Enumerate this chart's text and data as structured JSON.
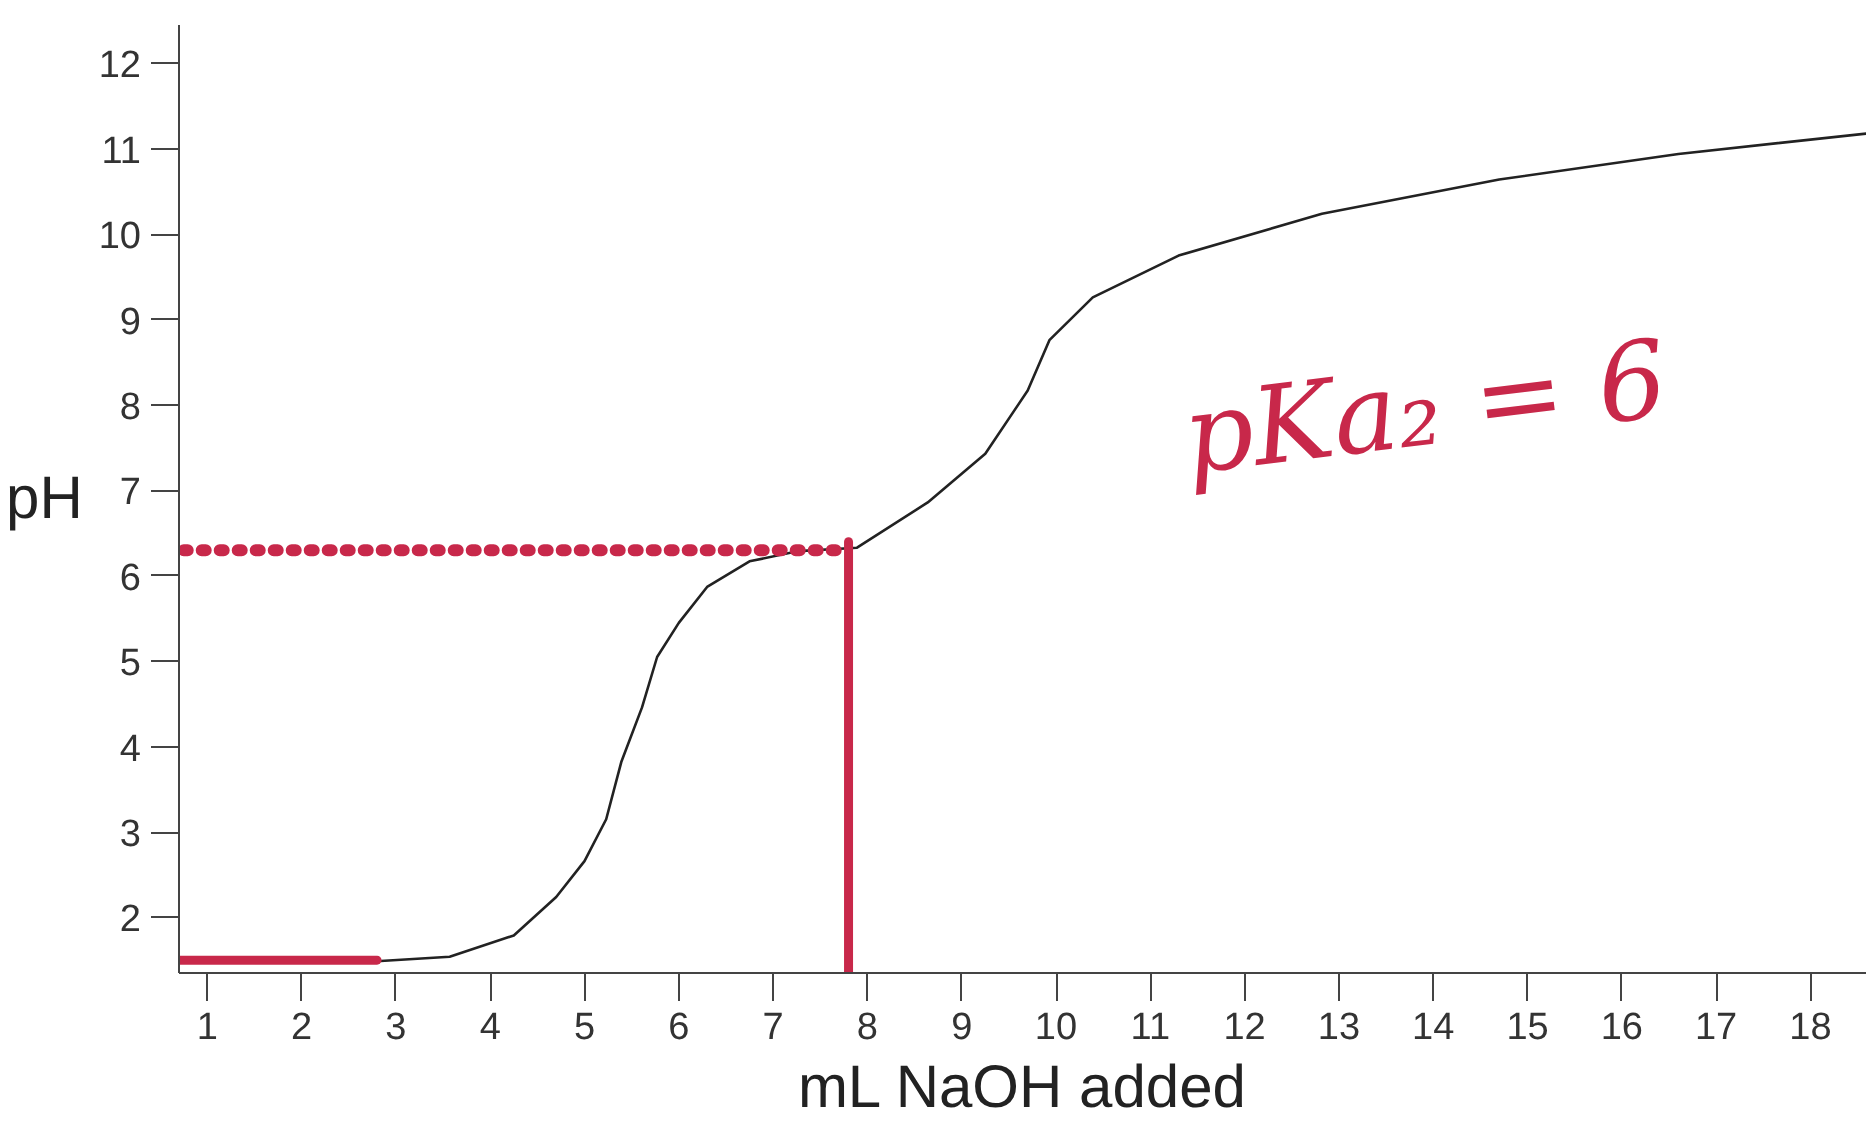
{
  "chart_data": {
    "type": "line",
    "xlabel": "mL NaOH added",
    "ylabel": "pH",
    "xlim": [
      0.7,
      18.6
    ],
    "ylim": [
      1.35,
      12.45
    ],
    "xticks": [
      1,
      2,
      3,
      4,
      5,
      6,
      7,
      8,
      9,
      10,
      11,
      12,
      13,
      14,
      15,
      16,
      17,
      18
    ],
    "yticks": [
      2,
      3,
      4,
      5,
      6,
      7,
      8,
      9,
      10,
      11,
      12
    ],
    "grid": false,
    "marker": "none",
    "annotations": [
      "pKa₂ = 6"
    ],
    "series": [
      {
        "color": "#222222",
        "line_style": "solid",
        "x": [
          2.84,
          3.57,
          4.25,
          4.7,
          5.0,
          5.23,
          5.39,
          5.61,
          5.77,
          6.0,
          6.3,
          6.75,
          7.27,
          7.89,
          8.64,
          9.25,
          9.7,
          9.93,
          10.39,
          11.3,
          12.82,
          14.7,
          16.6,
          18.6
        ],
        "values": [
          1.49,
          1.54,
          1.79,
          2.24,
          2.66,
          3.15,
          3.82,
          4.46,
          5.05,
          5.45,
          5.87,
          6.17,
          6.29,
          6.33,
          6.86,
          7.43,
          8.17,
          8.76,
          9.26,
          9.75,
          10.24,
          10.64,
          10.94,
          11.18
        ]
      },
      {
        "color": "#c8284a",
        "line_style": "dotted",
        "x": [
          0.75,
          7.8
        ],
        "values": [
          6.3,
          6.3
        ]
      },
      {
        "color": "#c8284a",
        "line_style": "solid",
        "x": [
          7.8,
          7.8
        ],
        "values": [
          1.35,
          6.4
        ]
      },
      {
        "color": "#c8284a",
        "line_style": "solid",
        "x": [
          0.7,
          2.8
        ],
        "values": [
          1.5,
          1.5
        ]
      }
    ]
  }
}
